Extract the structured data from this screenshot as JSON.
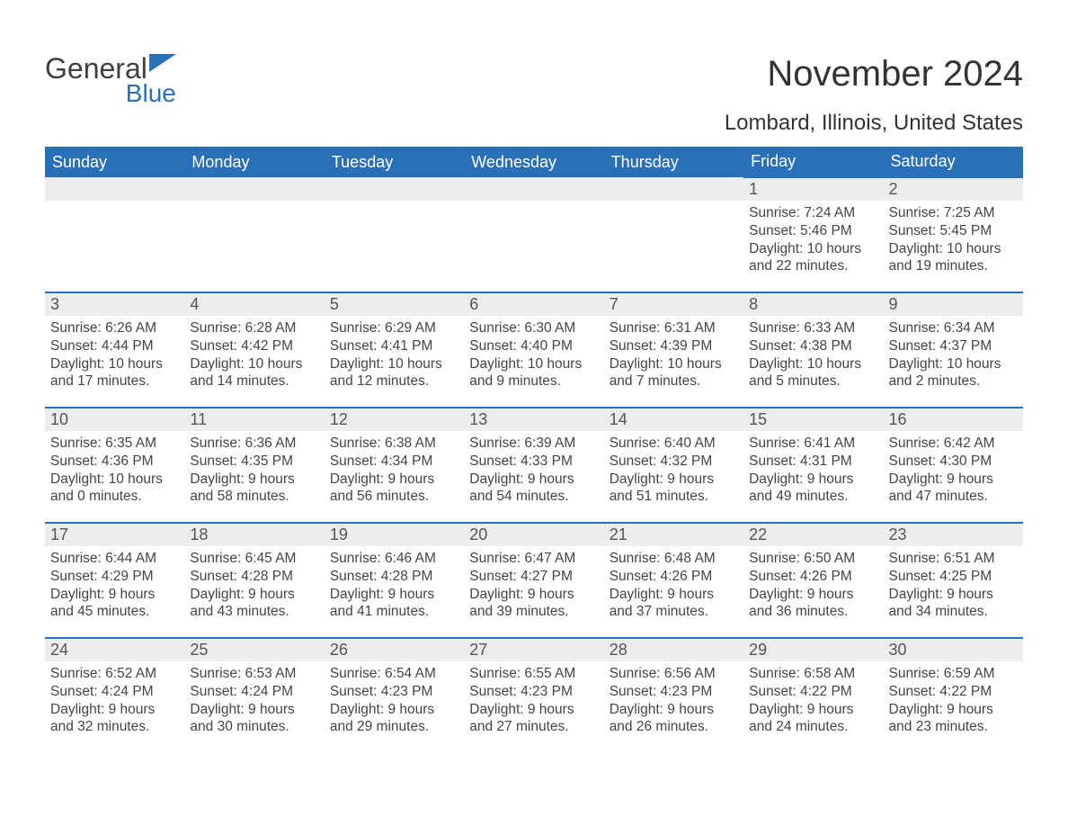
{
  "logo": {
    "word1": "General",
    "word2": "Blue",
    "accent_color": "#2a70b8"
  },
  "title": "November 2024",
  "location": "Lombard, Illinois, United States",
  "colors": {
    "header_bg": "#2a70b8",
    "header_text": "#ffffff",
    "daynum_bg": "#ececec",
    "body_text": "#444444",
    "border": "#2a70b8",
    "page_bg": "#ffffff"
  },
  "fonts": {
    "base_family": "Arial",
    "title_size_pt": 30,
    "location_size_pt": 18,
    "header_size_pt": 14,
    "body_size_pt": 12
  },
  "layout": {
    "columns": 7,
    "rows": 5,
    "first_day_column_index": 5
  },
  "day_headers": [
    "Sunday",
    "Monday",
    "Tuesday",
    "Wednesday",
    "Thursday",
    "Friday",
    "Saturday"
  ],
  "labels": {
    "sunrise": "Sunrise:",
    "sunset": "Sunset:",
    "daylight": "Daylight:"
  },
  "days": [
    {
      "n": 1,
      "sunrise": "7:24 AM",
      "sunset": "5:46 PM",
      "daylight": "10 hours and 22 minutes."
    },
    {
      "n": 2,
      "sunrise": "7:25 AM",
      "sunset": "5:45 PM",
      "daylight": "10 hours and 19 minutes."
    },
    {
      "n": 3,
      "sunrise": "6:26 AM",
      "sunset": "4:44 PM",
      "daylight": "10 hours and 17 minutes."
    },
    {
      "n": 4,
      "sunrise": "6:28 AM",
      "sunset": "4:42 PM",
      "daylight": "10 hours and 14 minutes."
    },
    {
      "n": 5,
      "sunrise": "6:29 AM",
      "sunset": "4:41 PM",
      "daylight": "10 hours and 12 minutes."
    },
    {
      "n": 6,
      "sunrise": "6:30 AM",
      "sunset": "4:40 PM",
      "daylight": "10 hours and 9 minutes."
    },
    {
      "n": 7,
      "sunrise": "6:31 AM",
      "sunset": "4:39 PM",
      "daylight": "10 hours and 7 minutes."
    },
    {
      "n": 8,
      "sunrise": "6:33 AM",
      "sunset": "4:38 PM",
      "daylight": "10 hours and 5 minutes."
    },
    {
      "n": 9,
      "sunrise": "6:34 AM",
      "sunset": "4:37 PM",
      "daylight": "10 hours and 2 minutes."
    },
    {
      "n": 10,
      "sunrise": "6:35 AM",
      "sunset": "4:36 PM",
      "daylight": "10 hours and 0 minutes."
    },
    {
      "n": 11,
      "sunrise": "6:36 AM",
      "sunset": "4:35 PM",
      "daylight": "9 hours and 58 minutes."
    },
    {
      "n": 12,
      "sunrise": "6:38 AM",
      "sunset": "4:34 PM",
      "daylight": "9 hours and 56 minutes."
    },
    {
      "n": 13,
      "sunrise": "6:39 AM",
      "sunset": "4:33 PM",
      "daylight": "9 hours and 54 minutes."
    },
    {
      "n": 14,
      "sunrise": "6:40 AM",
      "sunset": "4:32 PM",
      "daylight": "9 hours and 51 minutes."
    },
    {
      "n": 15,
      "sunrise": "6:41 AM",
      "sunset": "4:31 PM",
      "daylight": "9 hours and 49 minutes."
    },
    {
      "n": 16,
      "sunrise": "6:42 AM",
      "sunset": "4:30 PM",
      "daylight": "9 hours and 47 minutes."
    },
    {
      "n": 17,
      "sunrise": "6:44 AM",
      "sunset": "4:29 PM",
      "daylight": "9 hours and 45 minutes."
    },
    {
      "n": 18,
      "sunrise": "6:45 AM",
      "sunset": "4:28 PM",
      "daylight": "9 hours and 43 minutes."
    },
    {
      "n": 19,
      "sunrise": "6:46 AM",
      "sunset": "4:28 PM",
      "daylight": "9 hours and 41 minutes."
    },
    {
      "n": 20,
      "sunrise": "6:47 AM",
      "sunset": "4:27 PM",
      "daylight": "9 hours and 39 minutes."
    },
    {
      "n": 21,
      "sunrise": "6:48 AM",
      "sunset": "4:26 PM",
      "daylight": "9 hours and 37 minutes."
    },
    {
      "n": 22,
      "sunrise": "6:50 AM",
      "sunset": "4:26 PM",
      "daylight": "9 hours and 36 minutes."
    },
    {
      "n": 23,
      "sunrise": "6:51 AM",
      "sunset": "4:25 PM",
      "daylight": "9 hours and 34 minutes."
    },
    {
      "n": 24,
      "sunrise": "6:52 AM",
      "sunset": "4:24 PM",
      "daylight": "9 hours and 32 minutes."
    },
    {
      "n": 25,
      "sunrise": "6:53 AM",
      "sunset": "4:24 PM",
      "daylight": "9 hours and 30 minutes."
    },
    {
      "n": 26,
      "sunrise": "6:54 AM",
      "sunset": "4:23 PM",
      "daylight": "9 hours and 29 minutes."
    },
    {
      "n": 27,
      "sunrise": "6:55 AM",
      "sunset": "4:23 PM",
      "daylight": "9 hours and 27 minutes."
    },
    {
      "n": 28,
      "sunrise": "6:56 AM",
      "sunset": "4:23 PM",
      "daylight": "9 hours and 26 minutes."
    },
    {
      "n": 29,
      "sunrise": "6:58 AM",
      "sunset": "4:22 PM",
      "daylight": "9 hours and 24 minutes."
    },
    {
      "n": 30,
      "sunrise": "6:59 AM",
      "sunset": "4:22 PM",
      "daylight": "9 hours and 23 minutes."
    }
  ]
}
